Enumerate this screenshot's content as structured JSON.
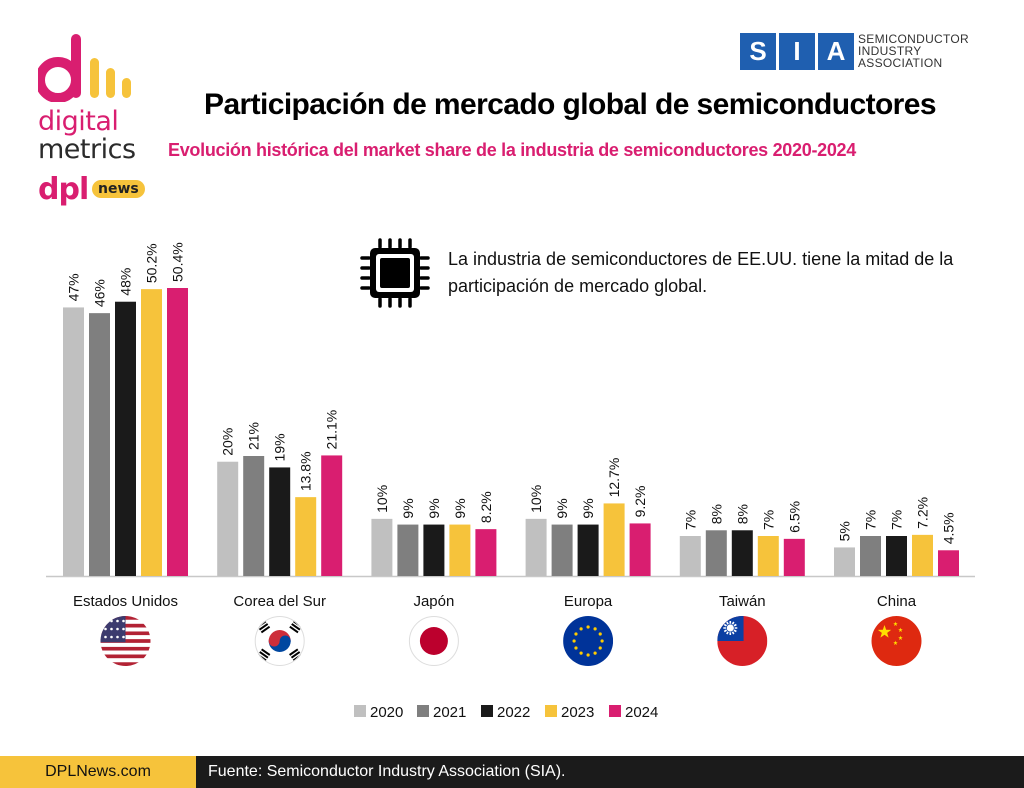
{
  "brand": {
    "logo_line1": "digital",
    "logo_line2": "metrics",
    "logo_dpl": "dpl",
    "logo_news": "news",
    "colors": {
      "pink": "#d91e70",
      "yellow": "#f6c33b"
    }
  },
  "sia": {
    "letters": [
      "S",
      "I",
      "A"
    ],
    "line1": "SEMICONDUCTOR",
    "line2": "INDUSTRY",
    "line3": "ASSOCIATION",
    "color": "#1f5fb0"
  },
  "annotation": {
    "icon": "chip-icon",
    "text": "La industria de semiconductores de EE.UU. tiene la mitad de la participación de mercado global."
  },
  "footer": {
    "site": "DPLNews.com",
    "source": "Fuente: Semiconductor Industry Association (SIA)."
  },
  "chart_data": {
    "type": "bar",
    "title": "Participación de mercado global de semiconductores",
    "subtitle": "Evolución histórica del market share de la industria de semiconductores 2020-2024",
    "categories": [
      "Estados Unidos",
      "Corea del Sur",
      "Japón",
      "Europa",
      "Taiwán",
      "China"
    ],
    "flags": [
      "us-flag-icon",
      "south-korea-flag-icon",
      "japan-flag-icon",
      "eu-flag-icon",
      "taiwan-flag-icon",
      "china-flag-icon"
    ],
    "series": [
      {
        "name": "2020",
        "color": "#c0c0c0",
        "values": [
          47,
          20,
          10,
          10,
          7,
          5
        ],
        "labels": [
          "47%",
          "20%",
          "10%",
          "10%",
          "7%",
          "5%"
        ]
      },
      {
        "name": "2021",
        "color": "#7f7f7f",
        "values": [
          46,
          21,
          9,
          9,
          8,
          7
        ],
        "labels": [
          "46%",
          "21%",
          "9%",
          "9%",
          "8%",
          "7%"
        ]
      },
      {
        "name": "2022",
        "color": "#1a1a1a",
        "values": [
          48,
          19,
          9,
          9,
          8,
          7
        ],
        "labels": [
          "48%",
          "19%",
          "9%",
          "9%",
          "8%",
          "7%"
        ]
      },
      {
        "name": "2023",
        "color": "#f6c33b",
        "values": [
          50.2,
          13.8,
          9,
          12.7,
          7,
          7.2
        ],
        "labels": [
          "50.2%",
          "13.8%",
          "9%",
          "12.7%",
          "7%",
          "7.2%"
        ]
      },
      {
        "name": "2024",
        "color": "#d91e70",
        "values": [
          50.4,
          21.1,
          8.2,
          9.2,
          6.5,
          4.5
        ],
        "labels": [
          "50.4%",
          "21.1%",
          "8.2%",
          "9.2%",
          "6.5%",
          "4.5%"
        ]
      }
    ],
    "ylim": [
      0,
      50.4
    ],
    "grid": false,
    "legend_position": "bottom"
  }
}
